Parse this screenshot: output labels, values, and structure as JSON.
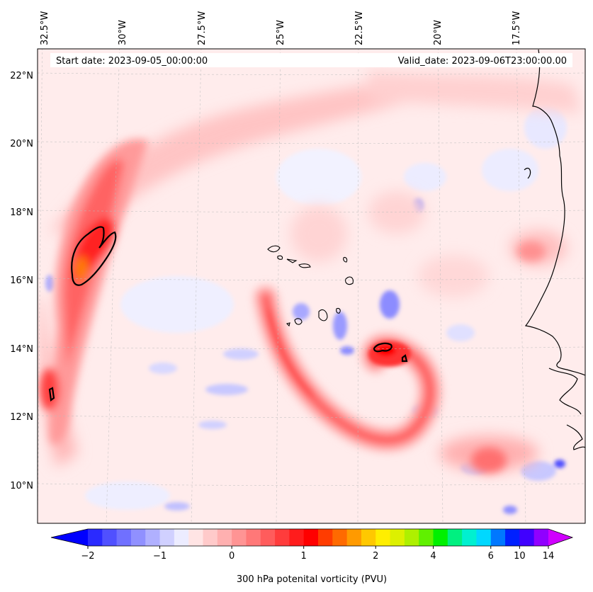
{
  "map": {
    "start_date": "Start date: 2023-09-05_00:00:00",
    "valid_date": "Valid_date: 2023-09-06T23:00:00.00",
    "lon_labels": [
      "32.5°W",
      "30°W",
      "27.5°W",
      "25°W",
      "22.5°W",
      "20°W",
      "17.5°W"
    ],
    "lat_labels": [
      "22°N",
      "20°N",
      "18°N",
      "16°N",
      "14°N",
      "12°N",
      "10°N"
    ],
    "colors": {
      "neg_strong": "#3c3cff",
      "neg_mid": "#8c8cff",
      "neg_light": "#d6d6ff",
      "neg_faint": "#eeeeff",
      "pos_faint": "#ffe8e8",
      "pos_light": "#ffc8c8",
      "pos_mid": "#ff8080",
      "pos_strong": "#ff2a2a",
      "pos_core": "#ff7a00",
      "land_line": "#000000"
    }
  },
  "colorbar": {
    "label": "300 hPa potenital vorticity (PVU)",
    "tick_labels": [
      "−2",
      "−1",
      "0",
      "1",
      "2",
      "4",
      "6",
      "10",
      "14"
    ],
    "colors": [
      "#0000ff",
      "#2a2aff",
      "#5050ff",
      "#7070ff",
      "#9090ff",
      "#b0b0ff",
      "#d0d0ff",
      "#ececff",
      "#ffe4e4",
      "#ffcaca",
      "#ffb0b0",
      "#ff9494",
      "#ff7878",
      "#ff5c5c",
      "#ff3c3c",
      "#ff1c1c",
      "#ff0000",
      "#ff3c00",
      "#ff6a00",
      "#ff9a00",
      "#ffc800",
      "#ffee00",
      "#ddf000",
      "#aef000",
      "#60f000",
      "#00f000",
      "#00f080",
      "#00f0d0",
      "#00d8ff",
      "#0078ff",
      "#0020ff",
      "#4000ff",
      "#9000ff",
      "#d000ff"
    ]
  }
}
